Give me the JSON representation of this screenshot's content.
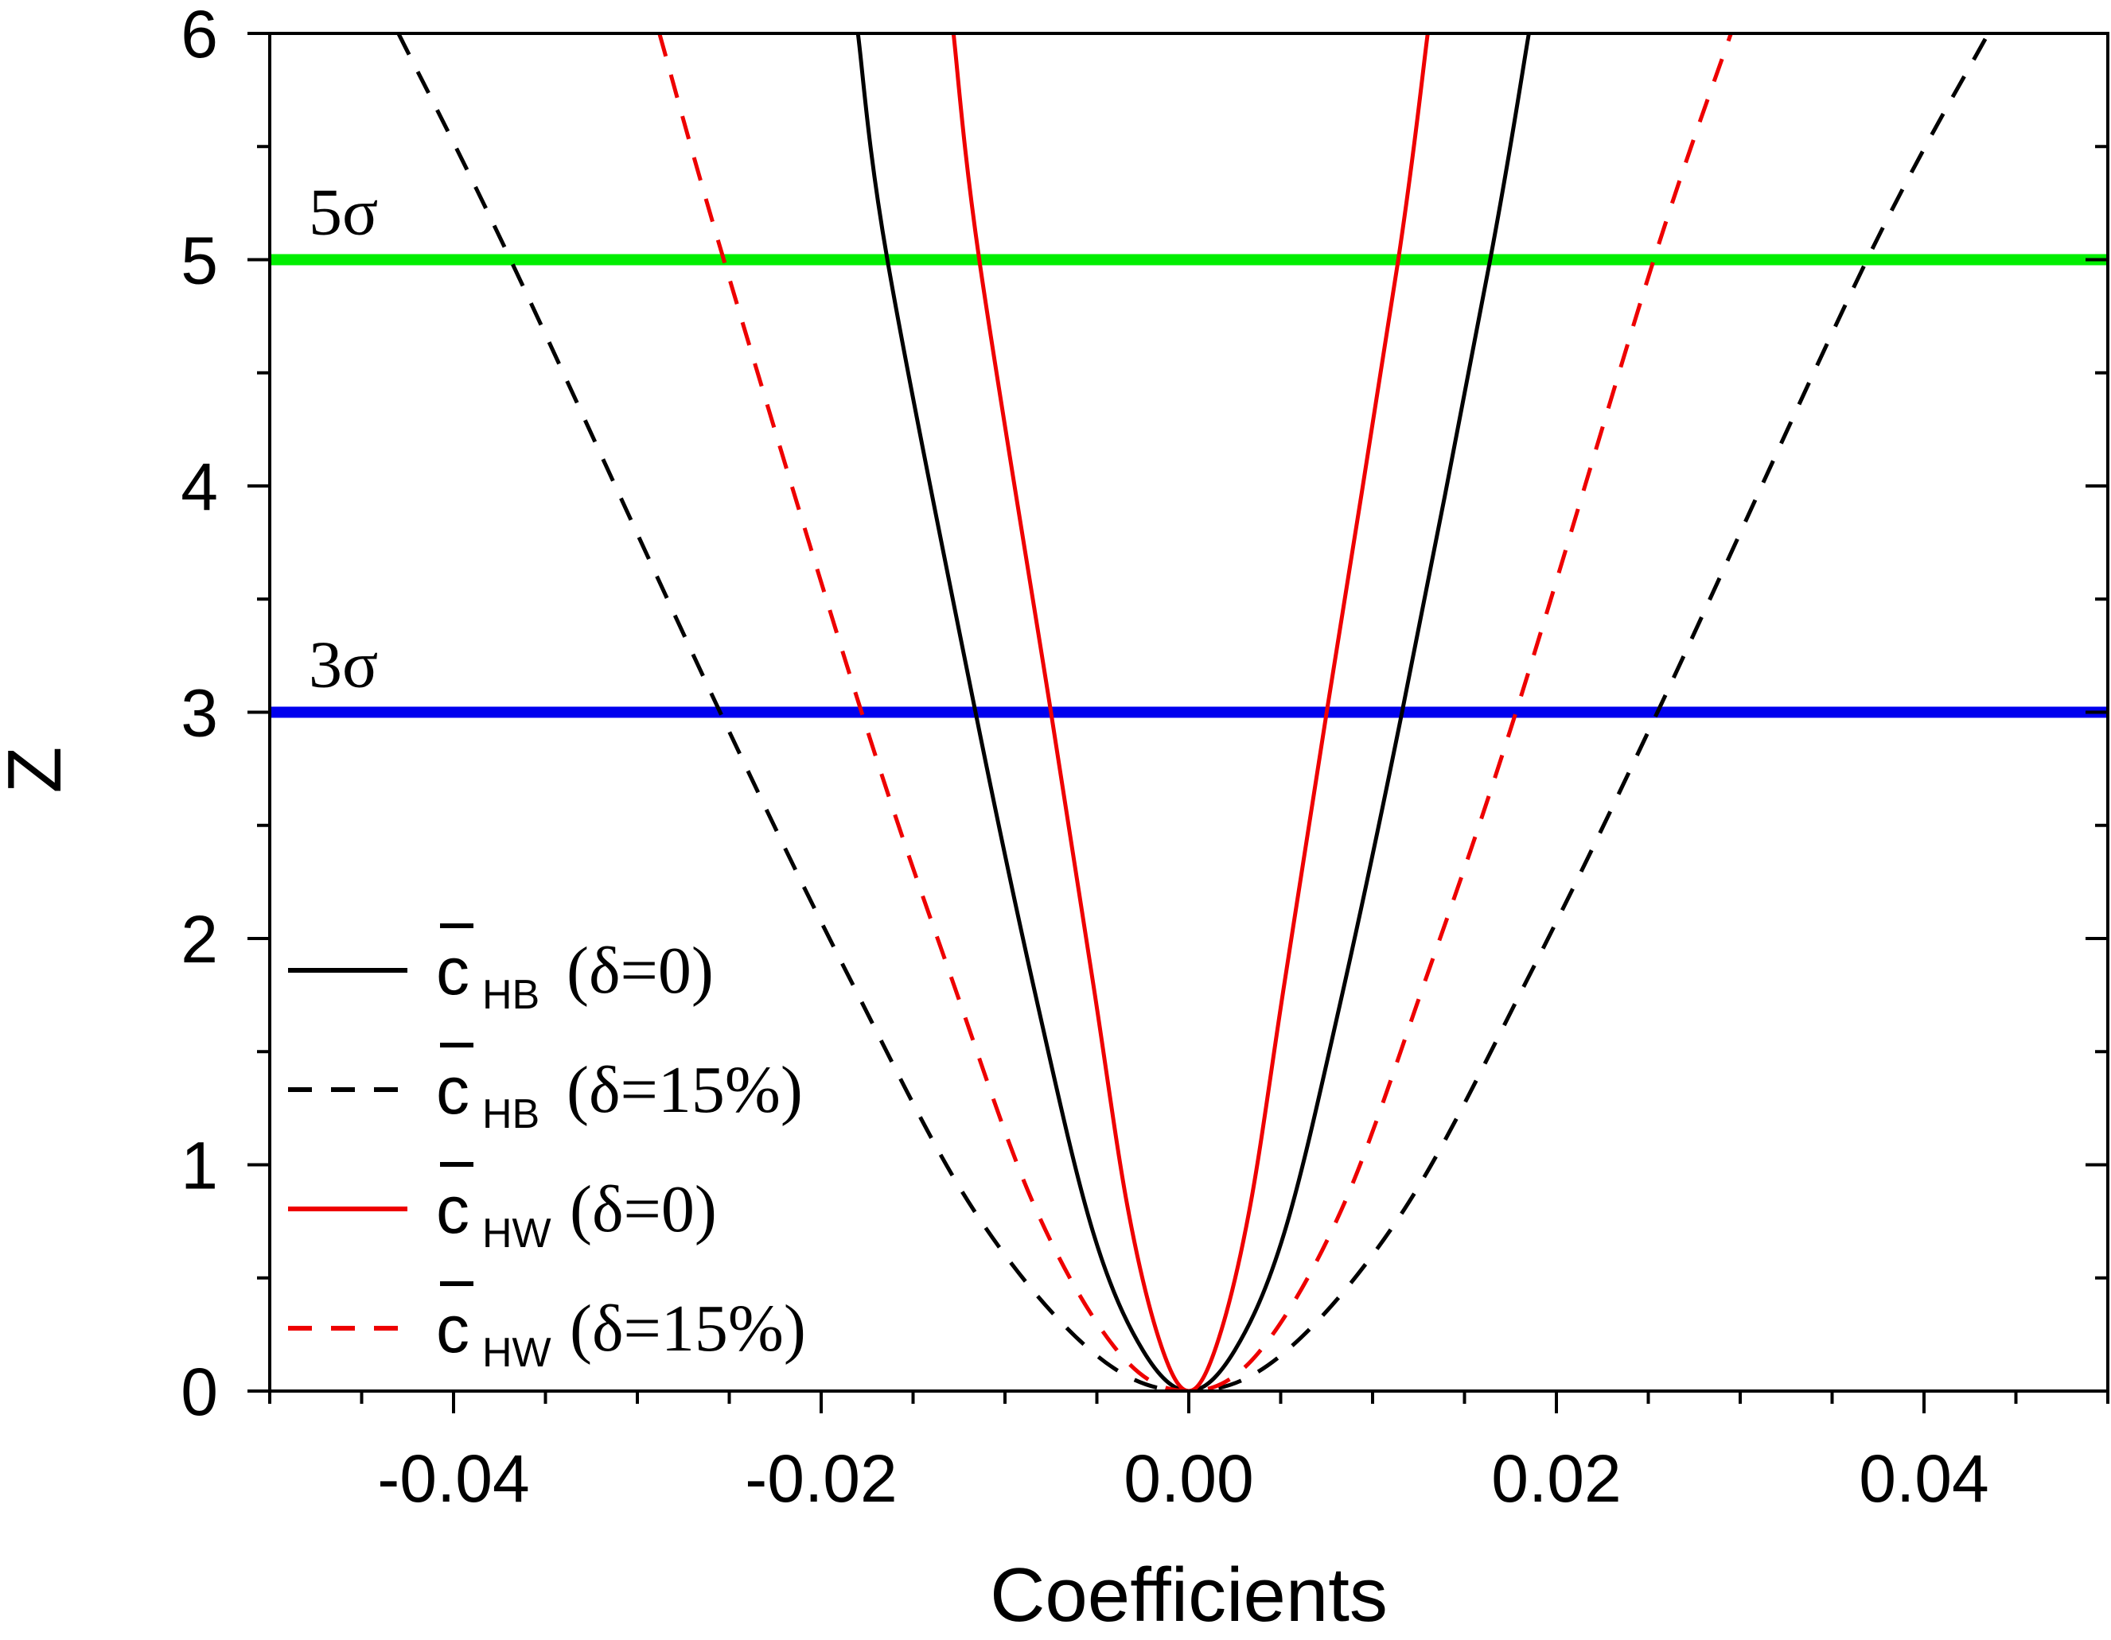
{
  "chart_data": {
    "type": "line",
    "xlabel": "Coefficients",
    "ylabel": "Z",
    "xlim": [
      -0.05,
      0.05
    ],
    "ylim": [
      0,
      6
    ],
    "xticks": [
      -0.04,
      -0.02,
      0.0,
      0.02,
      0.04
    ],
    "xtick_labels": [
      "-0.04",
      "-0.02",
      "0.00",
      "0.02",
      "0.04"
    ],
    "yticks": [
      0,
      1,
      2,
      3,
      4,
      5,
      6
    ],
    "ytick_labels": [
      "0",
      "1",
      "2",
      "3",
      "4",
      "5",
      "6"
    ],
    "legend_position": "bottom-left",
    "reference_lines": [
      {
        "name": "5σ",
        "label": "5σ",
        "y": 5,
        "color": "#00ee00"
      },
      {
        "name": "3σ",
        "label": "3σ",
        "y": 3,
        "color": "#0000ee"
      }
    ],
    "series": [
      {
        "name": "c̄HB (δ=0)",
        "base": "c",
        "subscript": "HB",
        "param": "(δ=0)",
        "color": "#000000",
        "dash": "solid",
        "x": [
          -0.018,
          -0.0164,
          -0.0116,
          -0.0082,
          -0.0052,
          -0.0025,
          0.0,
          0.0025,
          0.0052,
          0.0082,
          0.0116,
          0.0164,
          0.0185
        ],
        "y": [
          6.0,
          5.0,
          3.0,
          1.7,
          0.7,
          0.18,
          0.0,
          0.18,
          0.7,
          1.7,
          3.0,
          5.0,
          6.0
        ]
      },
      {
        "name": "c̄HB (δ=15%)",
        "base": "c",
        "subscript": "HB",
        "param": "(δ=15%)",
        "color": "#000000",
        "dash": "dashed",
        "x": [
          -0.043,
          -0.0369,
          -0.0255,
          -0.0183,
          -0.0117,
          -0.0052,
          0.0,
          0.0052,
          0.0117,
          0.0183,
          0.0255,
          0.0369,
          0.0435
        ],
        "y": [
          6.0,
          5.0,
          3.0,
          1.8,
          0.8,
          0.17,
          0.0,
          0.17,
          0.8,
          1.8,
          3.0,
          5.0,
          6.0
        ]
      },
      {
        "name": "c̄HW (δ=0)",
        "base": "c",
        "subscript": "HW",
        "param": "(δ=0)",
        "color": "#ee0000",
        "dash": "solid",
        "x": [
          -0.0128,
          -0.0114,
          -0.0075,
          -0.0052,
          -0.0033,
          -0.0015,
          0.0,
          0.0015,
          0.0033,
          0.0052,
          0.0075,
          0.0114,
          0.013
        ],
        "y": [
          6.0,
          5.0,
          3.0,
          1.8,
          0.8,
          0.2,
          0.0,
          0.2,
          0.8,
          1.8,
          3.0,
          5.0,
          6.0
        ]
      },
      {
        "name": "c̄HW (δ=15%)",
        "base": "c",
        "subscript": "HW",
        "param": "(δ=15%)",
        "color": "#ee0000",
        "dash": "dashed",
        "x": [
          -0.0288,
          -0.0253,
          -0.0178,
          -0.0128,
          -0.0083,
          -0.0038,
          0.0,
          0.0038,
          0.0083,
          0.0128,
          0.0178,
          0.0253,
          0.0295
        ],
        "y": [
          6.0,
          5.0,
          3.0,
          1.8,
          0.8,
          0.17,
          0.0,
          0.17,
          0.8,
          1.8,
          3.0,
          5.0,
          6.0
        ]
      }
    ]
  }
}
